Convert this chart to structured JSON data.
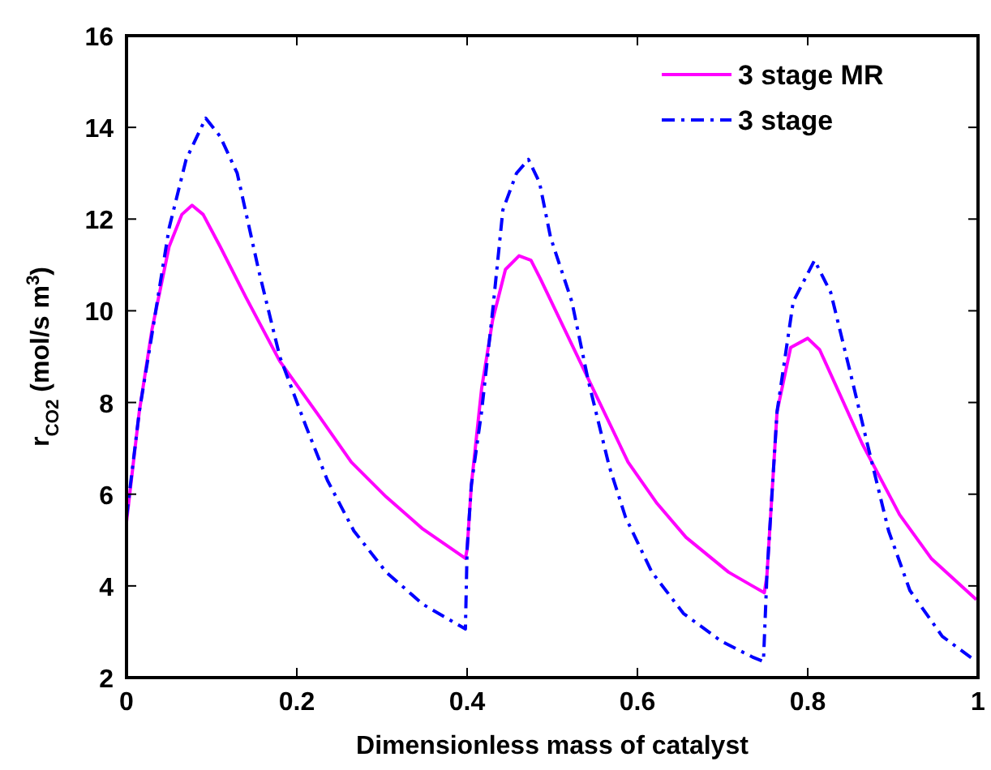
{
  "chart_data": {
    "type": "line",
    "xlabel": "Dimensionless mass of catalyst",
    "ylabel": "r$_{CO2}$ (mol/s m$^{3}$)",
    "xlim": [
      0,
      1
    ],
    "ylim": [
      2,
      16
    ],
    "xticks": [
      0,
      0.2,
      0.4,
      0.6,
      0.8,
      1
    ],
    "yticks": [
      2,
      4,
      6,
      8,
      10,
      12,
      14,
      16
    ],
    "grid": false,
    "legend": "top right",
    "series": [
      {
        "name": "3 stage MR",
        "color": "#ff00ff",
        "line_style": "solid",
        "x": [
          0,
          0.015,
          0.03,
          0.05,
          0.065,
          0.077,
          0.09,
          0.11,
          0.14,
          0.18,
          0.224,
          0.264,
          0.305,
          0.348,
          0.398,
          0.4,
          0.405,
          0.417,
          0.43,
          0.445,
          0.461,
          0.475,
          0.486,
          0.536,
          0.589,
          0.623,
          0.657,
          0.707,
          0.735,
          0.749,
          0.752,
          0.764,
          0.78,
          0.8,
          0.814,
          0.864,
          0.908,
          0.945,
          0.998
        ],
        "values": [
          5.4,
          7.8,
          9.6,
          11.4,
          12.1,
          12.3,
          12.1,
          11.4,
          10.3,
          8.9,
          7.76,
          6.7,
          5.94,
          5.24,
          4.6,
          4.8,
          6.2,
          8.3,
          9.8,
          10.9,
          11.2,
          11.1,
          10.7,
          8.76,
          6.7,
          5.8,
          5.06,
          4.3,
          4.0,
          3.85,
          4.2,
          7.8,
          9.2,
          9.4,
          9.15,
          7.1,
          5.55,
          4.6,
          3.7
        ]
      },
      {
        "name": "3 stage",
        "color": "#0000ff",
        "line_style": "dashdot",
        "x": [
          0,
          0.015,
          0.03,
          0.05,
          0.07,
          0.093,
          0.11,
          0.13,
          0.155,
          0.18,
          0.211,
          0.236,
          0.267,
          0.305,
          0.348,
          0.398,
          0.4,
          0.405,
          0.417,
          0.43,
          0.442,
          0.458,
          0.472,
          0.485,
          0.498,
          0.523,
          0.542,
          0.567,
          0.586,
          0.617,
          0.654,
          0.698,
          0.735,
          0.748,
          0.752,
          0.764,
          0.783,
          0.808,
          0.827,
          0.852,
          0.87,
          0.895,
          0.92,
          0.958,
          0.998
        ],
        "values": [
          5.5,
          7.8,
          9.5,
          11.8,
          13.3,
          14.2,
          13.8,
          13.0,
          10.9,
          9.0,
          7.47,
          6.3,
          5.2,
          4.3,
          3.6,
          3.06,
          4.8,
          6.2,
          7.8,
          10.0,
          12.2,
          13.0,
          13.3,
          12.8,
          11.6,
          10.2,
          8.5,
          6.6,
          5.5,
          4.3,
          3.4,
          2.8,
          2.45,
          2.35,
          4.2,
          7.8,
          10.2,
          11.1,
          10.4,
          8.5,
          7.1,
          5.2,
          3.9,
          2.9,
          2.35
        ]
      }
    ]
  }
}
